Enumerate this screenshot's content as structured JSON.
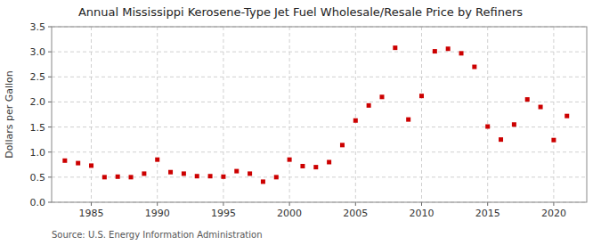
{
  "chart_data": {
    "type": "scatter",
    "title": "Annual Mississippi Kerosene-Type Jet Fuel Wholesale/Resale Price by Refiners",
    "ylabel": "Dollars per Gallon",
    "source": "Source: U.S. Energy Information Administration",
    "x": [
      1983,
      1984,
      1985,
      1986,
      1987,
      1988,
      1989,
      1990,
      1991,
      1992,
      1993,
      1994,
      1995,
      1996,
      1997,
      1998,
      1999,
      2000,
      2001,
      2002,
      2003,
      2004,
      2005,
      2006,
      2007,
      2008,
      2009,
      2010,
      2011,
      2012,
      2013,
      2014,
      2015,
      2016,
      2017,
      2018,
      2019,
      2020,
      2021
    ],
    "values": [
      0.83,
      0.78,
      0.73,
      0.5,
      0.51,
      0.5,
      0.57,
      0.85,
      0.6,
      0.57,
      0.52,
      0.52,
      0.51,
      0.62,
      0.57,
      0.41,
      0.5,
      0.85,
      0.72,
      0.7,
      0.8,
      1.14,
      1.63,
      1.93,
      2.1,
      3.08,
      1.65,
      2.12,
      3.01,
      3.06,
      2.97,
      2.7,
      1.51,
      1.25,
      1.55,
      2.05,
      1.9,
      1.24,
      1.72
    ],
    "color": "#cc0000",
    "marker": "square",
    "xlim": [
      1982,
      2022.5
    ],
    "ylim": [
      0.0,
      3.5
    ],
    "xticks": [
      1985,
      1990,
      1995,
      2000,
      2005,
      2010,
      2015,
      2020
    ],
    "yticks": [
      {
        "value": 0.0,
        "label": "0.0"
      },
      0.5,
      {
        "value": 1.0,
        "label": "1.0"
      },
      1.5,
      {
        "value": 2.0,
        "label": "2.0"
      },
      2.5,
      {
        "value": 3.0,
        "label": "3.0"
      },
      3.5
    ],
    "grid": true
  }
}
